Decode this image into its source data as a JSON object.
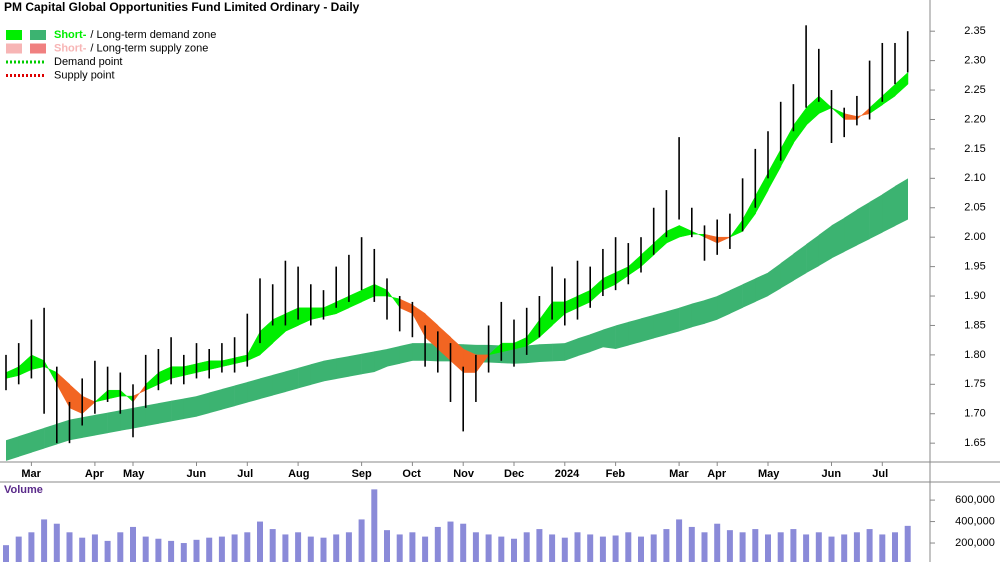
{
  "chart_data": {
    "type": "ohlc",
    "title": "PM Capital Global Opportunities Fund Limited Ordinary - Daily",
    "legend": [
      {
        "short": "Short-",
        "rest": "/ Long-term demand zone",
        "colors": [
          "#00ee00",
          "#3cb371"
        ]
      },
      {
        "short": "Short-",
        "rest": "/ Long-term supply zone",
        "colors": [
          "#f7b5b5",
          "#f08080"
        ]
      },
      {
        "label": "Demand point",
        "color": "#00cc00"
      },
      {
        "label": "Supply point",
        "color": "#dd0000"
      }
    ],
    "categories": [
      null,
      null,
      "Mar",
      null,
      null,
      null,
      null,
      "Apr",
      null,
      null,
      "May",
      null,
      null,
      null,
      null,
      "Jun",
      null,
      null,
      null,
      "Jul",
      null,
      null,
      null,
      "Aug",
      null,
      null,
      null,
      null,
      "Sep",
      null,
      null,
      null,
      "Oct",
      null,
      null,
      null,
      "Nov",
      null,
      null,
      null,
      "Dec",
      null,
      null,
      null,
      "2024",
      null,
      null,
      null,
      "Feb",
      null,
      null,
      null,
      null,
      "Mar",
      null,
      null,
      "Apr",
      null,
      null,
      null,
      "May",
      null,
      null,
      null,
      null,
      "Jun",
      null,
      null,
      null,
      "Jul",
      null,
      null
    ],
    "high": [
      1.8,
      1.82,
      1.86,
      1.88,
      1.78,
      1.72,
      1.76,
      1.79,
      1.78,
      1.77,
      1.75,
      1.8,
      1.81,
      1.83,
      1.8,
      1.82,
      1.81,
      1.82,
      1.83,
      1.87,
      1.93,
      1.92,
      1.96,
      1.95,
      1.92,
      1.91,
      1.95,
      1.97,
      2.0,
      1.98,
      1.93,
      1.9,
      1.89,
      1.85,
      1.84,
      1.82,
      1.78,
      1.8,
      1.85,
      1.89,
      1.86,
      1.88,
      1.9,
      1.95,
      1.93,
      1.96,
      1.95,
      1.98,
      2.0,
      1.99,
      2.0,
      2.05,
      2.08,
      2.17,
      2.05,
      2.02,
      2.03,
      2.04,
      2.1,
      2.15,
      2.18,
      2.23,
      2.26,
      2.36,
      2.32,
      2.25,
      2.22,
      2.24,
      2.3,
      2.33,
      2.33,
      2.35
    ],
    "low": [
      1.74,
      1.75,
      1.76,
      1.7,
      1.65,
      1.65,
      1.68,
      1.7,
      1.72,
      1.7,
      1.66,
      1.71,
      1.74,
      1.75,
      1.75,
      1.76,
      1.76,
      1.77,
      1.77,
      1.78,
      1.82,
      1.85,
      1.85,
      1.86,
      1.85,
      1.86,
      1.88,
      1.89,
      1.91,
      1.89,
      1.86,
      1.84,
      1.83,
      1.78,
      1.77,
      1.72,
      1.67,
      1.72,
      1.77,
      1.79,
      1.78,
      1.8,
      1.83,
      1.86,
      1.85,
      1.86,
      1.88,
      1.9,
      1.91,
      1.92,
      1.94,
      1.97,
      2.0,
      2.03,
      2.0,
      1.96,
      1.97,
      1.98,
      2.01,
      2.05,
      2.1,
      2.13,
      2.18,
      2.22,
      2.23,
      2.16,
      2.17,
      2.19,
      2.2,
      2.23,
      2.26,
      2.28
    ],
    "bar_color": "#000000",
    "long_term": {
      "color": "#3cb371",
      "upper": [
        1.655,
        1.662,
        1.669,
        1.676,
        1.683,
        1.69,
        1.694,
        1.698,
        1.702,
        1.706,
        1.71,
        1.714,
        1.718,
        1.722,
        1.726,
        1.73,
        1.736,
        1.742,
        1.748,
        1.754,
        1.76,
        1.766,
        1.772,
        1.778,
        1.784,
        1.79,
        1.794,
        1.798,
        1.802,
        1.806,
        1.81,
        1.815,
        1.82,
        1.82,
        1.819,
        1.819,
        1.818,
        1.817,
        1.817,
        1.816,
        1.815,
        1.816,
        1.818,
        1.819,
        1.82,
        1.828,
        1.835,
        1.843,
        1.85,
        1.856,
        1.862,
        1.868,
        1.874,
        1.88,
        1.887,
        1.893,
        1.9,
        1.91,
        1.92,
        1.93,
        1.94,
        1.956,
        1.972,
        1.988,
        2.004,
        2.02,
        2.033,
        2.047,
        2.06,
        2.073,
        2.087,
        2.1
      ],
      "lower": [
        1.62,
        1.627,
        1.634,
        1.641,
        1.648,
        1.655,
        1.659,
        1.663,
        1.667,
        1.671,
        1.675,
        1.679,
        1.683,
        1.687,
        1.691,
        1.695,
        1.701,
        1.707,
        1.713,
        1.719,
        1.725,
        1.731,
        1.737,
        1.743,
        1.749,
        1.755,
        1.759,
        1.763,
        1.767,
        1.771,
        1.78,
        1.785,
        1.79,
        1.79,
        1.789,
        1.789,
        1.788,
        1.787,
        1.787,
        1.786,
        1.785,
        1.786,
        1.788,
        1.789,
        1.79,
        1.798,
        1.805,
        1.813,
        1.81,
        1.816,
        1.822,
        1.828,
        1.834,
        1.84,
        1.847,
        1.853,
        1.86,
        1.87,
        1.88,
        1.89,
        1.9,
        1.913,
        1.926,
        1.939,
        1.951,
        1.964,
        1.975,
        1.986,
        1.997,
        2.008,
        2.019,
        2.03
      ]
    },
    "short_term": {
      "demand_color": "#00ee00",
      "supply_color": "#f26522",
      "fast": [
        1.77,
        1.78,
        1.8,
        1.79,
        1.75,
        1.71,
        1.7,
        1.72,
        1.74,
        1.74,
        1.72,
        1.75,
        1.77,
        1.78,
        1.78,
        1.785,
        1.79,
        1.79,
        1.795,
        1.8,
        1.84,
        1.86,
        1.87,
        1.88,
        1.88,
        1.88,
        1.89,
        1.9,
        1.91,
        1.92,
        1.91,
        1.88,
        1.87,
        1.83,
        1.81,
        1.79,
        1.77,
        1.77,
        1.8,
        1.82,
        1.82,
        1.83,
        1.86,
        1.89,
        1.89,
        1.9,
        1.91,
        1.93,
        1.94,
        1.95,
        1.97,
        1.99,
        2.01,
        2.02,
        2.01,
        2.0,
        1.99,
        2.0,
        2.03,
        2.07,
        2.11,
        2.15,
        2.19,
        2.22,
        2.24,
        2.22,
        2.2,
        2.2,
        2.22,
        2.24,
        2.26,
        2.28
      ],
      "slow": [
        1.76,
        1.765,
        1.775,
        1.78,
        1.77,
        1.75,
        1.73,
        1.72,
        1.725,
        1.73,
        1.73,
        1.74,
        1.75,
        1.76,
        1.765,
        1.77,
        1.775,
        1.78,
        1.785,
        1.79,
        1.8,
        1.82,
        1.84,
        1.85,
        1.86,
        1.865,
        1.87,
        1.88,
        1.89,
        1.9,
        1.9,
        1.895,
        1.885,
        1.87,
        1.85,
        1.83,
        1.81,
        1.8,
        1.8,
        1.805,
        1.81,
        1.815,
        1.83,
        1.85,
        1.87,
        1.88,
        1.89,
        1.91,
        1.92,
        1.935,
        1.95,
        1.97,
        1.99,
        2.0,
        2.005,
        2.005,
        2.0,
        2.0,
        2.01,
        2.04,
        2.08,
        2.12,
        2.16,
        2.19,
        2.21,
        2.22,
        2.21,
        2.205,
        2.21,
        2.225,
        2.24,
        2.26
      ]
    },
    "ylim": [
      1.618,
      2.403
    ],
    "yticks": [
      1.65,
      {
        "value": 1.7,
        "label": "1.70"
      },
      1.75,
      {
        "value": 1.8,
        "label": "1.80"
      },
      1.85,
      {
        "value": 1.9,
        "label": "1.90"
      },
      1.95,
      {
        "value": 2.0,
        "label": "2.00"
      },
      2.05,
      {
        "value": 2.1,
        "label": "2.10"
      },
      2.15,
      {
        "value": 2.2,
        "label": "2.20"
      },
      2.25,
      {
        "value": 2.3,
        "label": "2.30"
      },
      2.35
    ],
    "volume": {
      "label": "Volume",
      "color": "#8a8ad8",
      "values": [
        180000,
        260000,
        300000,
        420000,
        380000,
        300000,
        250000,
        280000,
        220000,
        300000,
        350000,
        260000,
        240000,
        220000,
        200000,
        230000,
        250000,
        260000,
        280000,
        300000,
        400000,
        330000,
        280000,
        300000,
        260000,
        250000,
        280000,
        300000,
        420000,
        700000,
        320000,
        280000,
        300000,
        260000,
        350000,
        400000,
        380000,
        300000,
        280000,
        260000,
        240000,
        300000,
        330000,
        280000,
        250000,
        300000,
        280000,
        260000,
        270000,
        300000,
        260000,
        280000,
        330000,
        420000,
        350000,
        300000,
        380000,
        320000,
        300000,
        330000,
        280000,
        300000,
        330000,
        280000,
        300000,
        260000,
        280000,
        300000,
        330000,
        280000,
        300000,
        360000
      ],
      "ylim": [
        0,
        750000
      ],
      "yticks": [
        {
          "value": 200000,
          "label": "200,000"
        },
        {
          "value": 400000,
          "label": "400,000"
        },
        {
          "value": 600000,
          "label": "600,000"
        }
      ]
    }
  }
}
